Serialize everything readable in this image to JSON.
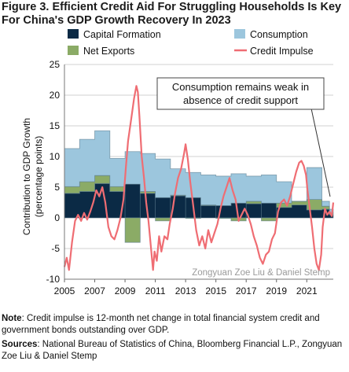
{
  "title": "Figure 3. Efficient Credit Aid For Struggling Households Is Key For China's GDP Growth Recovery In 2023",
  "note_label": "Note",
  "note_text": ": Credit impulse is 12-month net change in total financial system credit and government bonds outstanding over  GDP.",
  "sources_label": "Sources",
  "sources_text": ": National Bureau of Statistics of China, Bloomberg Financial L.P., Zongyuan Zoe Liu & Daniel Stemp",
  "watermark": "Zongyuan Zoe Liu & Daniel Stemp",
  "callout": [
    "Consumption remains weak in",
    "absence of credit support"
  ],
  "colors": {
    "capital_formation": "#0b2a45",
    "net_exports": "#8bab66",
    "consumption": "#9cc6dd",
    "credit_impulse": "#ef6d73",
    "grid": "#d0d0d0"
  },
  "chart_data": {
    "type": "area",
    "ylabel": "Contribution to GDP Growth (percentage points)",
    "ylim": [
      -10,
      25
    ],
    "yticks": [
      -10,
      -5,
      0,
      5,
      10,
      15,
      20,
      25
    ],
    "xlim": [
      2005,
      2022.75
    ],
    "xticks": [
      2005,
      2007,
      2009,
      2011,
      2013,
      2015,
      2017,
      2019,
      2021
    ],
    "legend": [
      "Capital Formation",
      "Consumption",
      "Net Exports",
      "Credit Impulse"
    ],
    "legend_position": "top",
    "stacked_series": [
      {
        "name": "Capital Formation",
        "color_key": "capital_formation",
        "steps": [
          [
            2005,
            4.0
          ],
          [
            2006,
            4.3
          ],
          [
            2007,
            5.6
          ],
          [
            2008,
            4.3
          ],
          [
            2009,
            5.5
          ],
          [
            2010,
            4.0
          ],
          [
            2011,
            3.3
          ],
          [
            2012,
            3.6
          ],
          [
            2013,
            3.3
          ],
          [
            2014,
            2.0
          ],
          [
            2015,
            2.0
          ],
          [
            2016,
            2.4
          ],
          [
            2017,
            2.3
          ],
          [
            2018,
            2.4
          ],
          [
            2019,
            1.7
          ],
          [
            2020,
            2.1
          ],
          [
            2021,
            1.3
          ],
          [
            2022,
            1.4
          ],
          [
            2022.5,
            0.5
          ]
        ]
      },
      {
        "name": "Net Exports",
        "color_key": "net_exports",
        "steps": [
          [
            2005,
            1.1
          ],
          [
            2006,
            1.6
          ],
          [
            2007,
            1.3
          ],
          [
            2008,
            0.8
          ],
          [
            2009,
            -4.0
          ],
          [
            2010,
            0.3
          ],
          [
            2011,
            -0.5
          ],
          [
            2012,
            0.1
          ],
          [
            2013,
            -0.1
          ],
          [
            2014,
            0.1
          ],
          [
            2015,
            -0.1
          ],
          [
            2016,
            -0.5
          ],
          [
            2017,
            0.4
          ],
          [
            2018,
            -0.5
          ],
          [
            2019,
            0.7
          ],
          [
            2020,
            0.6
          ],
          [
            2021,
            1.7
          ],
          [
            2022,
            0.5
          ],
          [
            2022.5,
            0.3
          ]
        ]
      },
      {
        "name": "Consumption",
        "color_key": "consumption",
        "steps": [
          [
            2005,
            6.2
          ],
          [
            2006,
            6.9
          ],
          [
            2007,
            7.3
          ],
          [
            2008,
            4.6
          ],
          [
            2009,
            5.3
          ],
          [
            2010,
            6.2
          ],
          [
            2011,
            6.3
          ],
          [
            2012,
            4.3
          ],
          [
            2013,
            4.1
          ],
          [
            2014,
            4.9
          ],
          [
            2015,
            4.8
          ],
          [
            2016,
            4.8
          ],
          [
            2017,
            4.1
          ],
          [
            2018,
            4.6
          ],
          [
            2019,
            3.5
          ],
          [
            2020,
            0.0
          ],
          [
            2021,
            5.2
          ],
          [
            2022,
            0.8
          ],
          [
            2022.5,
            0.6
          ]
        ]
      }
    ],
    "line_series": {
      "name": "Credit Impulse",
      "color_key": "credit_impulse",
      "points": [
        [
          2005.0,
          -8.0
        ],
        [
          2005.15,
          -6.5
        ],
        [
          2005.3,
          -8.5
        ],
        [
          2005.5,
          -4.0
        ],
        [
          2005.7,
          -0.5
        ],
        [
          2005.9,
          0.5
        ],
        [
          2006.1,
          -0.5
        ],
        [
          2006.3,
          0.8
        ],
        [
          2006.5,
          -0.3
        ],
        [
          2006.7,
          1.0
        ],
        [
          2006.9,
          2.5
        ],
        [
          2007.1,
          4.5
        ],
        [
          2007.3,
          3.5
        ],
        [
          2007.5,
          5.0
        ],
        [
          2007.7,
          2.5
        ],
        [
          2007.9,
          -1.5
        ],
        [
          2008.1,
          -3.0
        ],
        [
          2008.3,
          -3.5
        ],
        [
          2008.5,
          -2.0
        ],
        [
          2008.7,
          0.0
        ],
        [
          2008.9,
          3.0
        ],
        [
          2009.05,
          8.0
        ],
        [
          2009.2,
          12.5
        ],
        [
          2009.4,
          16.0
        ],
        [
          2009.6,
          19.5
        ],
        [
          2009.75,
          21.5
        ],
        [
          2009.85,
          20.5
        ],
        [
          2009.95,
          16.5
        ],
        [
          2010.1,
          10.0
        ],
        [
          2010.25,
          6.5
        ],
        [
          2010.4,
          2.5
        ],
        [
          2010.55,
          -0.5
        ],
        [
          2010.7,
          -4.5
        ],
        [
          2010.85,
          -8.5
        ],
        [
          2010.95,
          -5.5
        ],
        [
          2011.1,
          -7.0
        ],
        [
          2011.25,
          -3.0
        ],
        [
          2011.4,
          -5.5
        ],
        [
          2011.6,
          -3.0
        ],
        [
          2011.8,
          -3.5
        ],
        [
          2011.95,
          -1.0
        ],
        [
          2012.15,
          1.5
        ],
        [
          2012.3,
          4.0
        ],
        [
          2012.5,
          6.5
        ],
        [
          2012.7,
          8.0
        ],
        [
          2012.9,
          10.5
        ],
        [
          2013.0,
          12.0
        ],
        [
          2013.15,
          9.5
        ],
        [
          2013.3,
          6.0
        ],
        [
          2013.5,
          2.0
        ],
        [
          2013.7,
          -2.0
        ],
        [
          2013.9,
          -4.5
        ],
        [
          2014.1,
          -3.0
        ],
        [
          2014.3,
          -5.0
        ],
        [
          2014.5,
          -2.0
        ],
        [
          2014.7,
          -4.0
        ],
        [
          2014.9,
          -2.5
        ],
        [
          2015.1,
          -1.0
        ],
        [
          2015.3,
          1.5
        ],
        [
          2015.5,
          3.5
        ],
        [
          2015.7,
          5.0
        ],
        [
          2015.9,
          6.5
        ],
        [
          2016.1,
          4.5
        ],
        [
          2016.3,
          3.0
        ],
        [
          2016.5,
          -0.5
        ],
        [
          2016.7,
          0.5
        ],
        [
          2016.9,
          1.5
        ],
        [
          2017.1,
          0.5
        ],
        [
          2017.3,
          -1.0
        ],
        [
          2017.5,
          -3.0
        ],
        [
          2017.7,
          -4.5
        ],
        [
          2017.9,
          -6.5
        ],
        [
          2018.1,
          -7.5
        ],
        [
          2018.3,
          -6.0
        ],
        [
          2018.5,
          -5.5
        ],
        [
          2018.7,
          -3.5
        ],
        [
          2018.9,
          -2.5
        ],
        [
          2019.1,
          1.0
        ],
        [
          2019.3,
          2.5
        ],
        [
          2019.5,
          3.0
        ],
        [
          2019.7,
          2.0
        ],
        [
          2019.9,
          3.5
        ],
        [
          2020.1,
          5.5
        ],
        [
          2020.3,
          7.5
        ],
        [
          2020.5,
          9.0
        ],
        [
          2020.65,
          9.3
        ],
        [
          2020.8,
          8.5
        ],
        [
          2020.95,
          7.0
        ],
        [
          2021.05,
          4.5
        ],
        [
          2021.2,
          1.5
        ],
        [
          2021.35,
          -1.5
        ],
        [
          2021.5,
          -5.0
        ],
        [
          2021.65,
          -7.5
        ],
        [
          2021.8,
          -8.5
        ],
        [
          2021.95,
          -6.0
        ],
        [
          2022.05,
          -1.5
        ],
        [
          2022.2,
          1.5
        ],
        [
          2022.35,
          0.5
        ],
        [
          2022.5,
          1.0
        ],
        [
          2022.65,
          0.3
        ],
        [
          2022.75,
          2.5
        ]
      ]
    }
  }
}
